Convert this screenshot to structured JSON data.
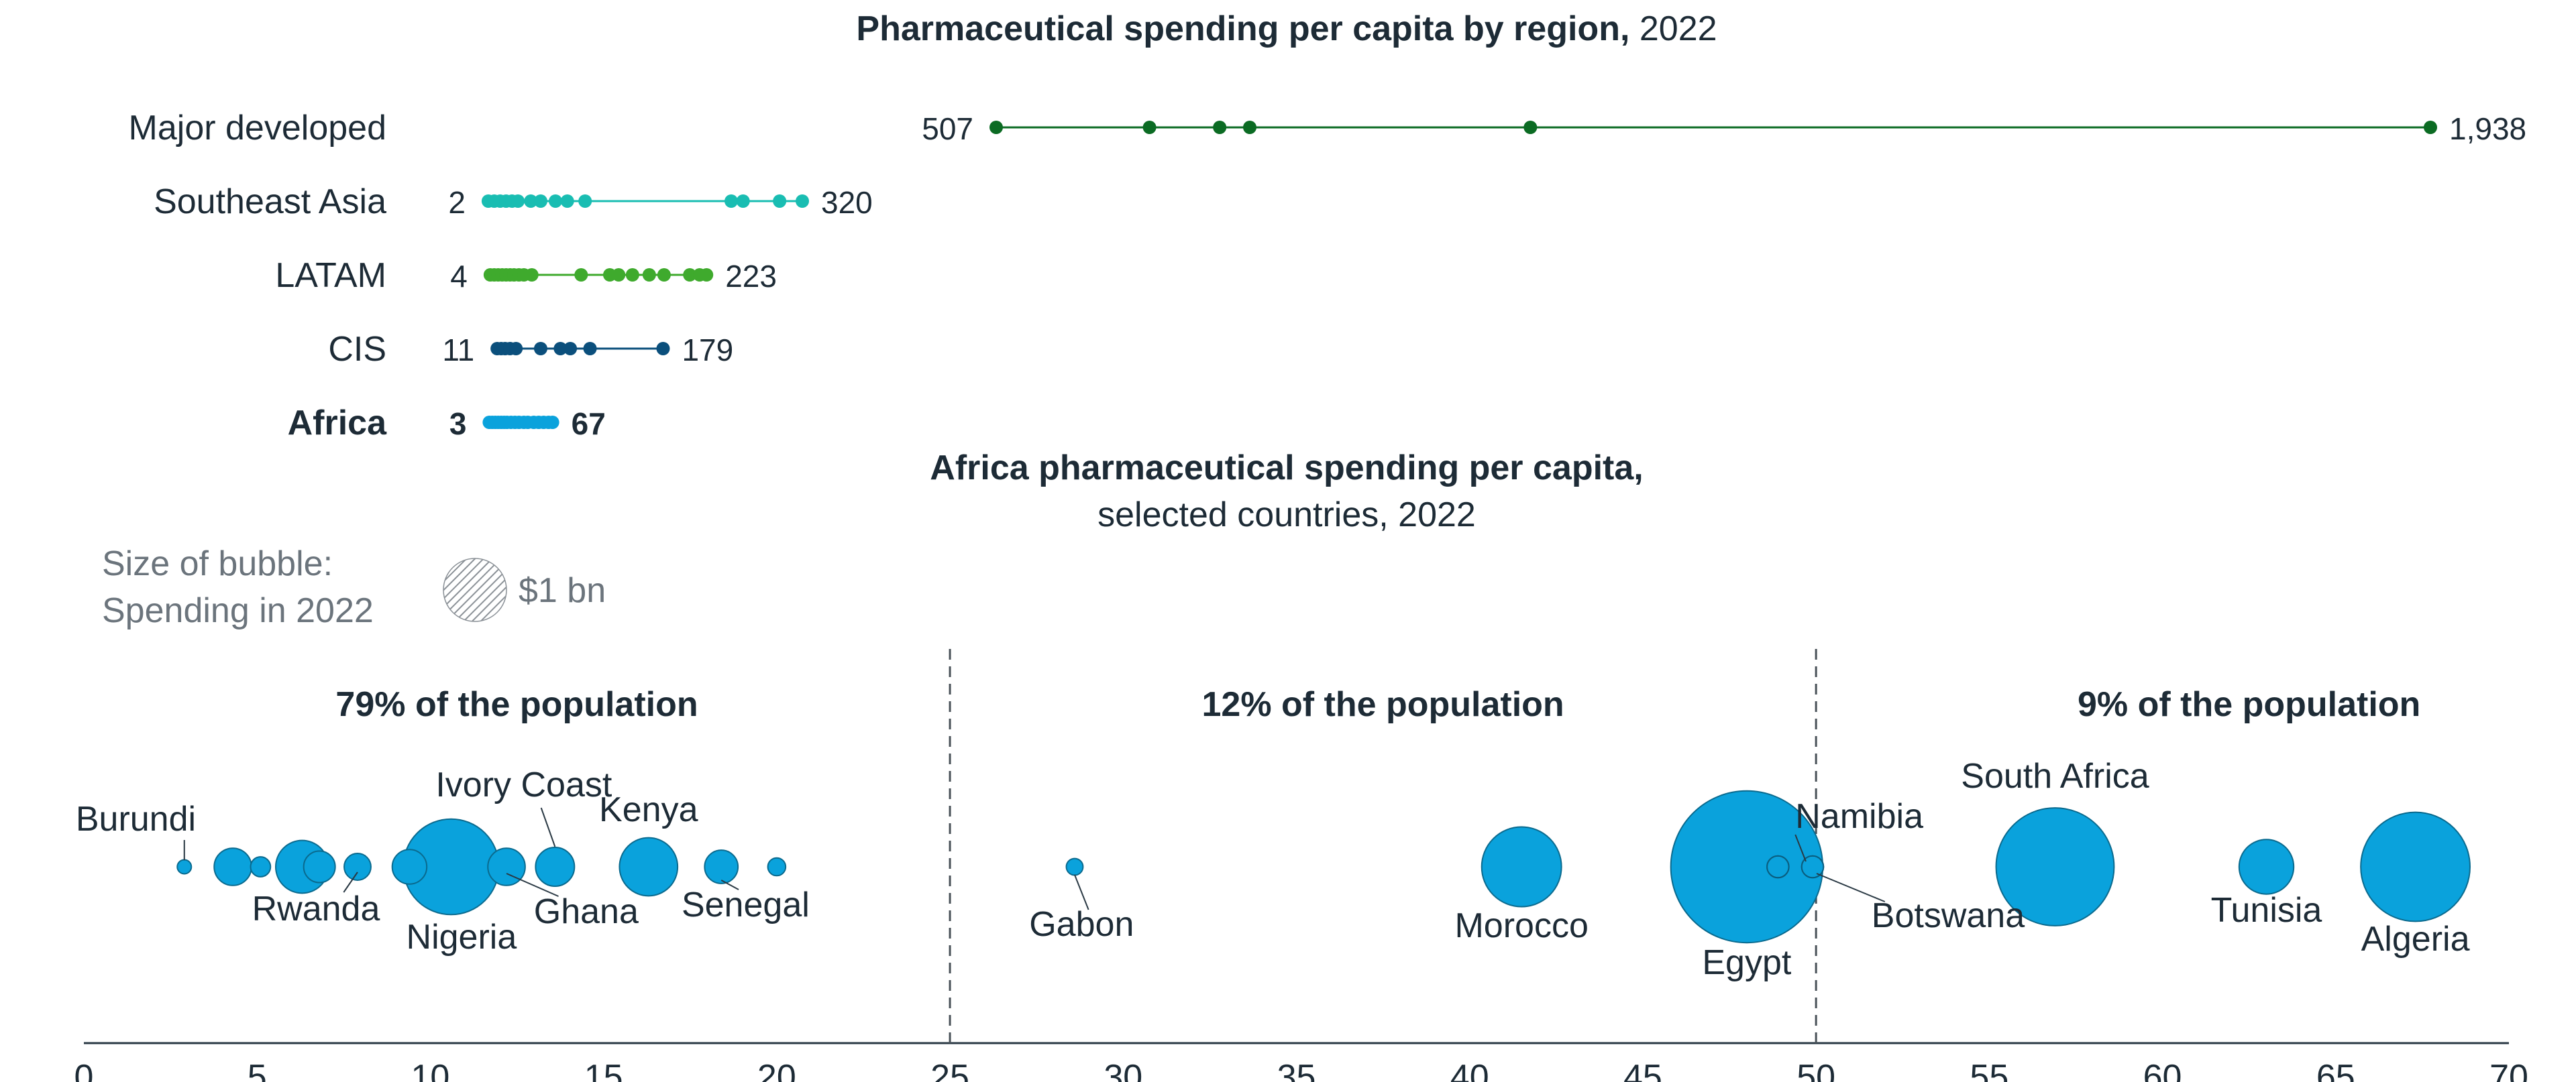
{
  "colors": {
    "text": "#1d2b36",
    "muted": "#6b747c",
    "axis": "#2a3944",
    "major_developed": "#0b6b23",
    "southeast_asia": "#19bdb2",
    "latam": "#3faa2d",
    "cis": "#0b4f7c",
    "africa": "#0aa2dc",
    "bubble_fill": "#0aa2dc",
    "bubble_stroke": "#0a6a8e"
  },
  "chart_data": [
    {
      "type": "scatter",
      "title_bold": "Pharmaceutical spending per capita by region,",
      "title_rest": " 2022",
      "scale": {
        "min_value": 0,
        "max_value": 1938
      },
      "series": [
        {
          "name": "Major developed",
          "min_label": "507",
          "max_label": "1,938",
          "bold": false,
          "color_key": "major_developed",
          "values": [
            507,
            660,
            730,
            760,
            1040,
            1938
          ]
        },
        {
          "name": "Southeast Asia",
          "min_label": "2",
          "max_label": "320",
          "bold": false,
          "color_key": "southeast_asia",
          "values": [
            2,
            8,
            14,
            20,
            26,
            32,
            45,
            55,
            70,
            82,
            100,
            248,
            260,
            297,
            320
          ]
        },
        {
          "name": "LATAM",
          "min_label": "4",
          "max_label": "223",
          "bold": false,
          "color_key": "latam",
          "values": [
            4,
            8,
            12,
            16,
            20,
            24,
            28,
            33,
            38,
            46,
            96,
            125,
            134,
            148,
            165,
            180,
            206,
            216,
            223
          ]
        },
        {
          "name": "CIS",
          "min_label": "11",
          "max_label": "179",
          "bold": false,
          "color_key": "cis",
          "values": [
            11,
            15,
            19,
            24,
            30,
            55,
            75,
            85,
            105,
            179
          ]
        },
        {
          "name": "Africa",
          "min_label": "3",
          "max_label": "67",
          "bold": true,
          "color_key": "africa",
          "values": [
            3,
            6,
            9,
            12,
            15,
            18,
            21,
            25,
            29,
            33,
            38,
            42,
            48,
            53,
            58,
            63,
            67
          ]
        }
      ]
    },
    {
      "type": "scatter",
      "title_line1": "Africa pharmaceutical spending per capita,",
      "title_line2": "selected countries, 2022",
      "legend": {
        "line1": "Size of bubble:",
        "line2": "Spending in 2022",
        "value_label": "$1 bn",
        "value_bn": 1
      },
      "x_axis": {
        "min": 0,
        "max": 70,
        "ticks": [
          "0",
          "5",
          "10",
          "15",
          "20",
          "25",
          "30",
          "35",
          "40",
          "45",
          "50",
          "55",
          "60",
          "65",
          "70"
        ]
      },
      "dividers": [
        25,
        50
      ],
      "segments": [
        {
          "label": "79% of the population",
          "center_x": 12.5
        },
        {
          "label": "12% of the population",
          "center_x": 37.5
        },
        {
          "label": "9% of the population",
          "center_x": 62.5
        }
      ],
      "points": [
        {
          "x": 2.9,
          "spend_bn": 0.05
        },
        {
          "x": 4.3,
          "spend_bn": 0.35
        },
        {
          "x": 5.1,
          "spend_bn": 0.1
        },
        {
          "x": 6.3,
          "spend_bn": 0.7
        },
        {
          "x": 6.8,
          "spend_bn": 0.25
        },
        {
          "x": 7.9,
          "spend_bn": 0.18
        },
        {
          "x": 9.4,
          "spend_bn": 0.3
        },
        {
          "x": 10.6,
          "spend_bn": 2.3
        },
        {
          "x": 12.2,
          "spend_bn": 0.35
        },
        {
          "x": 13.6,
          "spend_bn": 0.38
        },
        {
          "x": 16.3,
          "spend_bn": 0.85
        },
        {
          "x": 18.4,
          "spend_bn": 0.28
        },
        {
          "x": 20.0,
          "spend_bn": 0.08
        },
        {
          "x": 28.6,
          "spend_bn": 0.07
        },
        {
          "x": 41.5,
          "spend_bn": 1.6
        },
        {
          "x": 48.0,
          "spend_bn": 5.8
        },
        {
          "x": 48.9,
          "spend_bn": 0.12
        },
        {
          "x": 49.9,
          "spend_bn": 0.12
        },
        {
          "x": 56.9,
          "spend_bn": 3.5
        },
        {
          "x": 63.0,
          "spend_bn": 0.75
        },
        {
          "x": 67.3,
          "spend_bn": 3.0
        }
      ],
      "labels": [
        {
          "text": "Burundi",
          "x": 2.9,
          "side": "above",
          "leader": true
        },
        {
          "text": "Rwanda",
          "x": 7.0,
          "side": "below",
          "leader": true,
          "target_x": 7.9,
          "nudge_x": -0.3
        },
        {
          "text": "Ivory Coast",
          "x": 12.7,
          "side": "above-high",
          "leader": true,
          "target_x": 13.6
        },
        {
          "text": "Nigeria",
          "x": 10.9,
          "side": "below-far",
          "leader": false
        },
        {
          "text": "Ghana",
          "x": 14.5,
          "side": "below",
          "leader": true,
          "target_x": 12.2
        },
        {
          "text": "Kenya",
          "x": 16.3,
          "side": "above",
          "leader": false
        },
        {
          "text": "Senegal",
          "x": 19.1,
          "side": "below",
          "leader": true,
          "target_x": 18.4
        },
        {
          "text": "Gabon",
          "x": 28.8,
          "side": "below",
          "leader": true,
          "target_x": 28.6
        },
        {
          "text": "Morocco",
          "x": 41.5,
          "side": "below",
          "leader": false
        },
        {
          "text": "Egypt",
          "x": 48.0,
          "side": "below-far",
          "leader": false
        },
        {
          "text": "Namibia",
          "x": 52.7,
          "side": "above-right",
          "leader": true,
          "target_x": 49.9
        },
        {
          "text": "Botswana",
          "x": 52.7,
          "side": "below-right",
          "leader": true,
          "target_x": 49.9
        },
        {
          "text": "South Africa",
          "x": 56.9,
          "side": "above",
          "leader": false
        },
        {
          "text": "Tunisia",
          "x": 63.0,
          "side": "below",
          "leader": false
        },
        {
          "text": "Algeria",
          "x": 67.3,
          "side": "below",
          "leader": false
        }
      ]
    }
  ]
}
